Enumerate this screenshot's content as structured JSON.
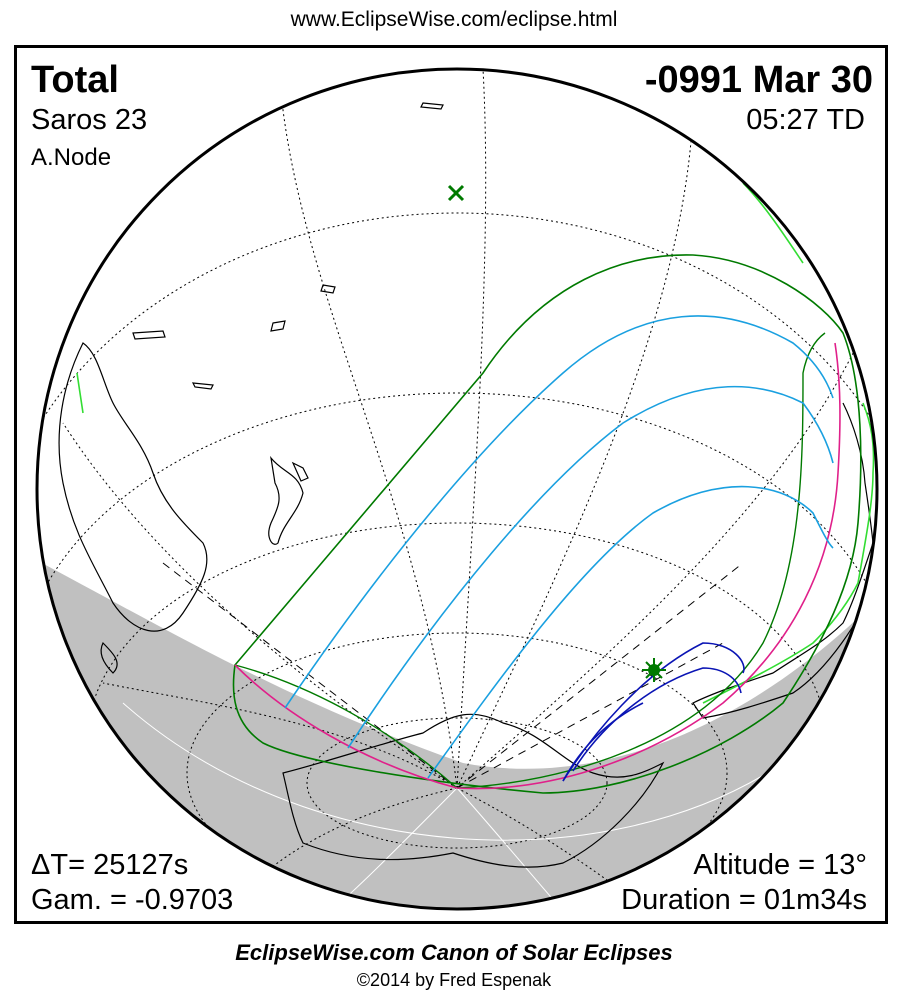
{
  "header": {
    "url": "www.EclipseWise.com/eclipse.html"
  },
  "eclipse": {
    "type": "Total",
    "date": "-0991 Mar 30",
    "saros": "Saros  23",
    "time": "05:27 TD",
    "node": "A.Node",
    "delta_t": "ΔT=  25127s",
    "gamma": "Gam. = -0.9703",
    "altitude": "Altitude = 13°",
    "duration": "Duration = 01m34s"
  },
  "colors": {
    "night": "#c0c0c0",
    "penumbra_limit": "#007a00",
    "rise_set": "#e0208a",
    "totality_path": "#1aa0e0",
    "ocean_limit": "#0a14b4",
    "coast_highlight": "#33dd33"
  },
  "map_icons": {
    "sub_solar_point": "x-mark-icon",
    "greatest_eclipse": "star-icon"
  },
  "footer": {
    "title": "EclipseWise.com Canon of Solar Eclipses",
    "copyright": "©2014 by Fred Espenak"
  }
}
